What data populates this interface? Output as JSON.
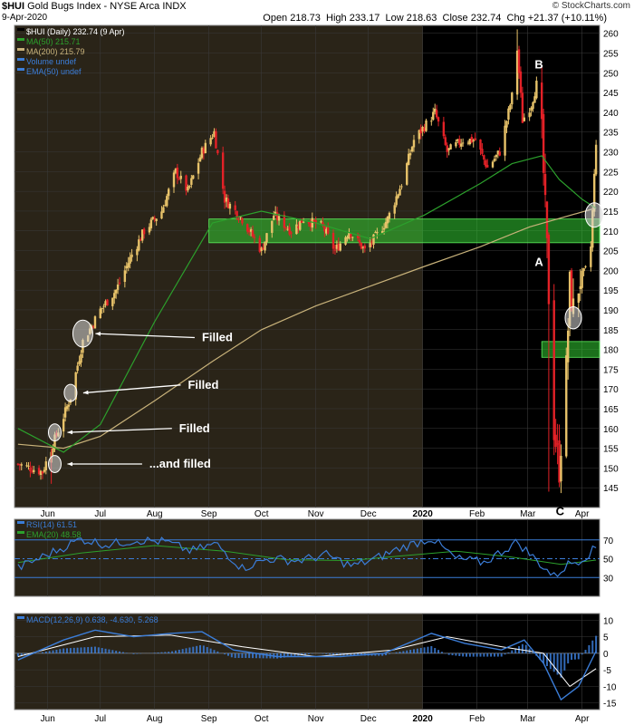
{
  "header": {
    "symbol": "$HUI",
    "name": "Gold Bugs Index - NYSE Arca",
    "exchange_tag": "INDX",
    "date": "9-Apr-2020",
    "open_label": "Open",
    "open": "218.73",
    "high_label": "High",
    "high": "233.17",
    "low_label": "Low",
    "low": "218.63",
    "close_label": "Close",
    "close": "232.74",
    "chg_label": "Chg",
    "chg": "+21.37 (+10.11%)",
    "copyright": "© StockCharts.com"
  },
  "colors": {
    "up": "#e8c36a",
    "down": "#e32127",
    "ma50": "#2ca02c",
    "ma200": "#c8b27a",
    "bg_light": "#ffffff",
    "bg_dark_2019": "#2a2418",
    "bg_dark_2020": "#000000",
    "zone": "#33cc33",
    "rsi": "#3b7dd8",
    "macd": "#3b7dd8",
    "hist": "#3b7dd8"
  },
  "chart_data": [
    {
      "type": "candlestick",
      "title": "$HUI (Daily) 232.74 (9 Apr)",
      "legend": [
        {
          "label": "$HUI (Daily) 232.74 (9 Apr)",
          "color": "#000000"
        },
        {
          "label": "MA(50) 215.71",
          "color": "#2ca02c"
        },
        {
          "label": "MA(200) 215.79",
          "color": "#c8b27a"
        },
        {
          "label": "Volume undef",
          "color": "#3b7dd8"
        },
        {
          "label": "EMA(50) undef",
          "color": "#3b7dd8"
        }
      ],
      "ylim": [
        140,
        262
      ],
      "yticks": [
        145,
        150,
        155,
        160,
        165,
        170,
        175,
        180,
        185,
        190,
        195,
        200,
        205,
        210,
        215,
        220,
        225,
        230,
        235,
        240,
        245,
        250,
        255,
        260
      ],
      "x_months": [
        "Jun",
        "Jul",
        "Aug",
        "Sep",
        "Oct",
        "Nov",
        "Dec",
        "2020",
        "Feb",
        "Mar",
        "Apr"
      ],
      "price_path": [
        [
          "2019-05-15",
          151
        ],
        [
          "2019-05-29",
          149
        ],
        [
          "2019-06-03",
          155
        ],
        [
          "2019-06-10",
          163
        ],
        [
          "2019-06-14",
          168
        ],
        [
          "2019-06-21",
          182
        ],
        [
          "2019-07-01",
          190
        ],
        [
          "2019-07-10",
          195
        ],
        [
          "2019-07-19",
          204
        ],
        [
          "2019-07-26",
          210
        ],
        [
          "2019-08-05",
          215
        ],
        [
          "2019-08-13",
          225
        ],
        [
          "2019-08-20",
          220
        ],
        [
          "2019-08-28",
          230
        ],
        [
          "2019-09-04",
          235
        ],
        [
          "2019-09-10",
          218
        ],
        [
          "2019-09-20",
          213
        ],
        [
          "2019-10-01",
          205
        ],
        [
          "2019-10-08",
          214
        ],
        [
          "2019-10-18",
          210
        ],
        [
          "2019-10-25",
          213
        ],
        [
          "2019-11-05",
          211
        ],
        [
          "2019-11-12",
          205
        ],
        [
          "2019-11-20",
          210
        ],
        [
          "2019-11-29",
          205
        ],
        [
          "2019-12-06",
          209
        ],
        [
          "2019-12-12",
          213
        ],
        [
          "2019-12-20",
          222
        ],
        [
          "2019-12-27",
          233
        ],
        [
          "2020-01-03",
          237
        ],
        [
          "2020-01-08",
          240
        ],
        [
          "2020-01-15",
          230
        ],
        [
          "2020-01-24",
          233
        ],
        [
          "2020-01-31",
          233
        ],
        [
          "2020-02-07",
          226
        ],
        [
          "2020-02-14",
          230
        ],
        [
          "2020-02-21",
          244
        ],
        [
          "2020-02-24",
          256
        ],
        [
          "2020-02-27",
          238
        ],
        [
          "2020-03-03",
          242
        ],
        [
          "2020-03-06",
          247
        ],
        [
          "2020-03-09",
          234
        ],
        [
          "2020-03-12",
          205
        ],
        [
          "2020-03-16",
          160
        ],
        [
          "2020-03-19",
          150
        ],
        [
          "2020-03-23",
          175
        ],
        [
          "2020-03-25",
          196
        ],
        [
          "2020-03-27",
          190
        ],
        [
          "2020-03-31",
          198
        ],
        [
          "2020-04-03",
          200
        ],
        [
          "2020-04-06",
          206
        ],
        [
          "2020-04-09",
          232.74
        ]
      ],
      "lows": [
        [
          "2020-03-13",
          144
        ],
        [
          "2019-06-03",
          146
        ]
      ],
      "highs": [
        [
          "2020-02-24",
          261
        ]
      ],
      "ma50_path": [
        [
          "2019-05-15",
          160
        ],
        [
          "2019-06-10",
          154
        ],
        [
          "2019-07-01",
          161
        ],
        [
          "2019-08-01",
          187
        ],
        [
          "2019-09-03",
          212
        ],
        [
          "2019-10-01",
          215
        ],
        [
          "2019-11-01",
          212
        ],
        [
          "2019-12-02",
          208
        ],
        [
          "2020-01-02",
          214
        ],
        [
          "2020-02-03",
          222
        ],
        [
          "2020-02-21",
          227
        ],
        [
          "2020-03-09",
          229
        ],
        [
          "2020-03-19",
          223
        ],
        [
          "2020-04-01",
          218
        ],
        [
          "2020-04-09",
          215.71
        ]
      ],
      "ma200_path": [
        [
          "2019-05-15",
          156
        ],
        [
          "2019-06-10",
          155
        ],
        [
          "2019-07-01",
          158
        ],
        [
          "2019-08-01",
          167
        ],
        [
          "2019-09-03",
          177
        ],
        [
          "2019-10-01",
          185
        ],
        [
          "2019-11-01",
          191
        ],
        [
          "2019-12-02",
          196
        ],
        [
          "2020-01-02",
          201
        ],
        [
          "2020-02-03",
          206
        ],
        [
          "2020-03-02",
          211
        ],
        [
          "2020-04-09",
          215.79
        ]
      ],
      "zones": [
        {
          "from": "2019-09-01",
          "to": "2020-04-11",
          "low": 207,
          "high": 213
        },
        {
          "from": "2020-03-09",
          "to": "2020-04-11",
          "low": 178,
          "high": 182
        }
      ],
      "circles": [
        {
          "date": "2019-06-21",
          "price": 184
        },
        {
          "date": "2019-06-14",
          "price": 169
        },
        {
          "date": "2019-06-05",
          "price": 159
        },
        {
          "date": "2019-06-05",
          "price": 151
        },
        {
          "date": "2020-03-27",
          "price": 188
        },
        {
          "date": "2020-04-08",
          "price": 214
        }
      ],
      "annotations": [
        {
          "text": "Filled",
          "date": "2019-08-28",
          "price": 183
        },
        {
          "text": "Filled",
          "date": "2019-08-20",
          "price": 171
        },
        {
          "text": "Filled",
          "date": "2019-08-15",
          "price": 160
        },
        {
          "text": "...and filled",
          "date": "2019-07-29",
          "price": 151
        },
        {
          "text": "A",
          "date": "2020-03-05",
          "price": 202
        },
        {
          "text": "B",
          "date": "2020-03-05",
          "price": 252
        },
        {
          "text": "C",
          "date": "2020-03-17",
          "price": 139
        }
      ]
    },
    {
      "type": "line",
      "title": "RSI(14) 61.51",
      "legend": [
        {
          "label": "RSI(14) 61.51",
          "color": "#3b7dd8"
        },
        {
          "label": "EMA(20) 48.58",
          "color": "#2ca02c"
        }
      ],
      "ylim": [
        10,
        92
      ],
      "yticks": [
        30,
        50,
        70
      ],
      "series": [
        {
          "name": "RSI(14) 61.51",
          "values_path": [
            [
              "2019-05-15",
              40
            ],
            [
              "2019-06-05",
              58
            ],
            [
              "2019-06-20",
              71
            ],
            [
              "2019-07-05",
              65
            ],
            [
              "2019-07-22",
              70
            ],
            [
              "2019-08-07",
              68
            ],
            [
              "2019-08-22",
              58
            ],
            [
              "2019-09-05",
              66
            ],
            [
              "2019-09-20",
              40
            ],
            [
              "2019-10-05",
              50
            ],
            [
              "2019-10-22",
              48
            ],
            [
              "2019-11-07",
              54
            ],
            [
              "2019-11-22",
              42
            ],
            [
              "2019-12-05",
              50
            ],
            [
              "2019-12-20",
              62
            ],
            [
              "2020-01-06",
              72
            ],
            [
              "2020-01-20",
              50
            ],
            [
              "2020-02-05",
              46
            ],
            [
              "2020-02-24",
              68
            ],
            [
              "2020-03-05",
              50
            ],
            [
              "2020-03-16",
              31
            ],
            [
              "2020-03-24",
              44
            ],
            [
              "2020-04-01",
              50
            ],
            [
              "2020-04-09",
              61.51
            ]
          ]
        },
        {
          "name": "EMA(20) 48.58",
          "values_path": [
            [
              "2019-05-15",
              46
            ],
            [
              "2019-06-20",
              56
            ],
            [
              "2019-08-01",
              64
            ],
            [
              "2019-09-10",
              58
            ],
            [
              "2019-10-15",
              49
            ],
            [
              "2019-11-20",
              48
            ],
            [
              "2019-12-20",
              53
            ],
            [
              "2020-01-20",
              58
            ],
            [
              "2020-02-20",
              52
            ],
            [
              "2020-03-20",
              44
            ],
            [
              "2020-04-09",
              48.58
            ]
          ]
        }
      ]
    },
    {
      "type": "line",
      "title": "MACD(12,26,9) 0.638, -4.630, 5.268",
      "legend": [
        {
          "label": "MACD(12,26,9) 0.638, -4.630, 5.268",
          "color": "#3b7dd8"
        }
      ],
      "ylim": [
        -17,
        12
      ],
      "yticks": [
        -15,
        -10,
        -5,
        0,
        5,
        10
      ],
      "series": [
        {
          "name": "MACD",
          "values_path": [
            [
              "2019-05-15",
              -2
            ],
            [
              "2019-06-10",
              4
            ],
            [
              "2019-06-28",
              7
            ],
            [
              "2019-07-20",
              5
            ],
            [
              "2019-08-10",
              6
            ],
            [
              "2019-08-28",
              6.5
            ],
            [
              "2019-09-15",
              1
            ],
            [
              "2019-10-10",
              -1
            ],
            [
              "2019-11-15",
              -1
            ],
            [
              "2019-12-10",
              0
            ],
            [
              "2020-01-06",
              6
            ],
            [
              "2020-01-25",
              3
            ],
            [
              "2020-02-15",
              1
            ],
            [
              "2020-02-28",
              4
            ],
            [
              "2020-03-10",
              -3
            ],
            [
              "2020-03-20",
              -14
            ],
            [
              "2020-03-30",
              -10
            ],
            [
              "2020-04-09",
              0.638
            ]
          ]
        },
        {
          "name": "Signal",
          "values_path": [
            [
              "2019-05-15",
              -1
            ],
            [
              "2019-06-28",
              5
            ],
            [
              "2019-08-10",
              5.5
            ],
            [
              "2019-09-20",
              2
            ],
            [
              "2019-11-01",
              -1
            ],
            [
              "2019-12-15",
              1
            ],
            [
              "2020-01-15",
              5
            ],
            [
              "2020-02-15",
              2
            ],
            [
              "2020-03-10",
              0
            ],
            [
              "2020-03-25",
              -10
            ],
            [
              "2020-04-09",
              -4.63
            ]
          ]
        }
      ]
    }
  ]
}
